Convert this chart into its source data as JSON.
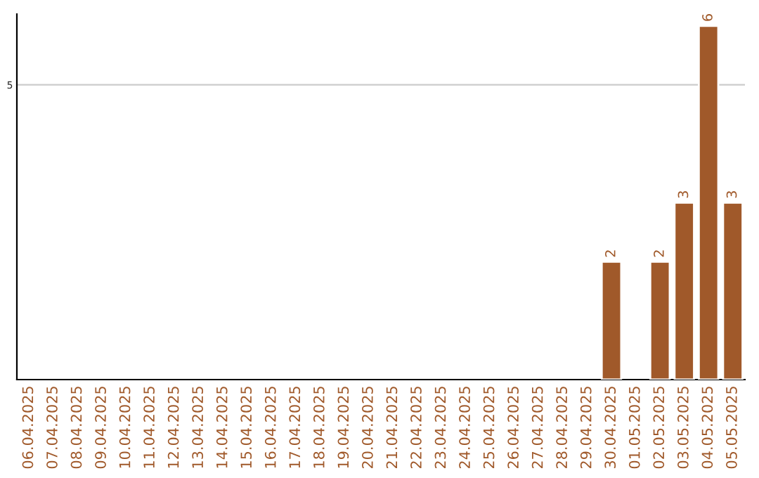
{
  "chart_data": {
    "type": "bar",
    "ylim": [
      0,
      6.2
    ],
    "yticks": [
      5
    ],
    "grid": "y",
    "data_labels": true,
    "categories": [
      "06.04.2025",
      "07.04.2025",
      "08.04.2025",
      "09.04.2025",
      "10.04.2025",
      "11.04.2025",
      "12.04.2025",
      "13.04.2025",
      "14.04.2025",
      "15.04.2025",
      "16.04.2025",
      "17.04.2025",
      "18.04.2025",
      "19.04.2025",
      "20.04.2025",
      "21.04.2025",
      "22.04.2025",
      "23.04.2025",
      "24.04.2025",
      "25.04.2025",
      "26.04.2025",
      "27.04.2025",
      "28.04.2025",
      "29.04.2025",
      "30.04.2025",
      "01.05.2025",
      "02.05.2025",
      "03.05.2025",
      "04.05.2025",
      "05.05.2025"
    ],
    "series": [
      {
        "color": "#a0592a",
        "values": [
          null,
          null,
          null,
          null,
          null,
          null,
          null,
          null,
          null,
          null,
          null,
          null,
          null,
          null,
          null,
          null,
          null,
          null,
          null,
          null,
          null,
          null,
          null,
          null,
          2,
          null,
          2,
          3,
          6,
          3
        ]
      }
    ]
  }
}
